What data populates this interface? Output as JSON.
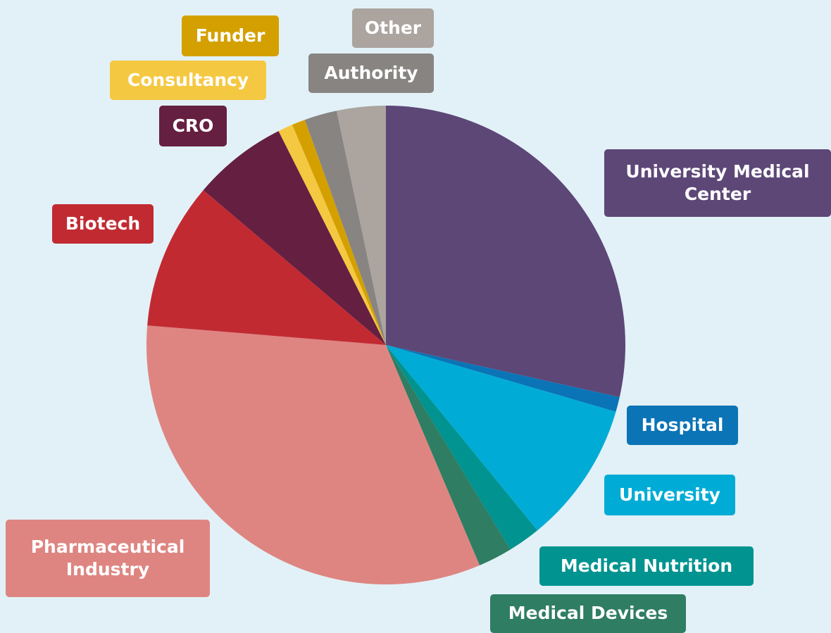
{
  "chart_data": {
    "type": "pie",
    "categories": [
      "University Medical Center",
      "Hospital",
      "University",
      "Medical Nutrition",
      "Medical Devices",
      "Pharmaceutical Industry",
      "Biotech",
      "CRO",
      "Consultancy",
      "Funder",
      "Authority",
      "Other"
    ],
    "values": [
      28.5,
      1,
      9.6,
      2.2,
      2.3,
      32.7,
      9.9,
      6.4,
      1,
      0.9,
      2.2,
      3.3
    ],
    "colors": [
      "#5d4777",
      "#0a74b6",
      "#00acd6",
      "#00938f",
      "#2f7d63",
      "#de8581",
      "#c22a32",
      "#651f41",
      "#f5c842",
      "#d4a000",
      "#878482",
      "#aba49f"
    ]
  }
}
